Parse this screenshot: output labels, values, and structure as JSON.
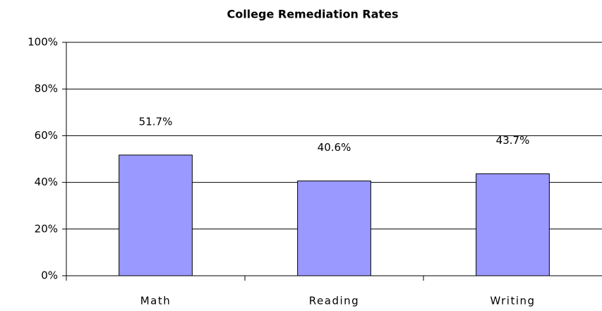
{
  "chart_data": {
    "type": "bar",
    "title": "College Remediation Rates",
    "categories": [
      "Math",
      "Reading",
      "Writing"
    ],
    "values": [
      51.7,
      40.6,
      43.7
    ],
    "value_labels": [
      "51.7%",
      "40.6%",
      "43.7%"
    ],
    "color": "#9999ff",
    "ylim": [
      0,
      100
    ],
    "yticks": [
      {
        "value": 0,
        "label": "0%"
      },
      {
        "value": 20,
        "label": "20%"
      },
      {
        "value": 40,
        "label": "40%"
      },
      {
        "value": 60,
        "label": "60%"
      },
      {
        "value": 80,
        "label": "80%"
      },
      {
        "value": 100,
        "label": "100%"
      }
    ],
    "grid": true
  }
}
